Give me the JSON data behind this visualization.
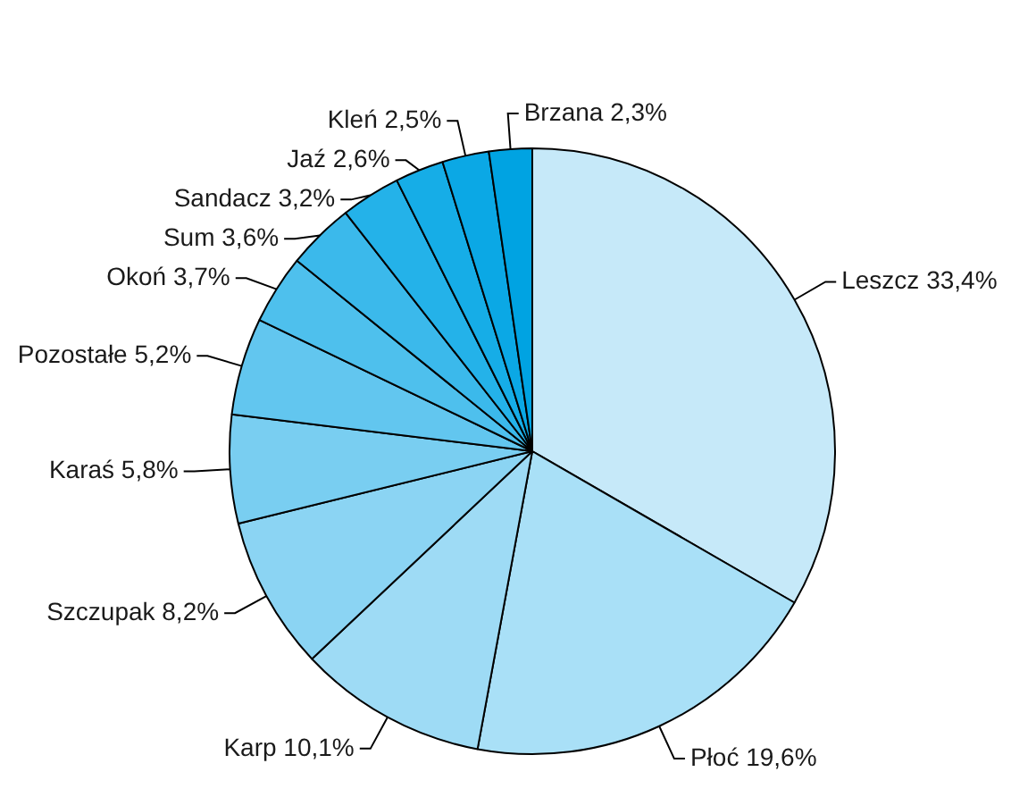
{
  "chart_data": {
    "type": "pie",
    "categories": [
      "Leszcz",
      "Płoć",
      "Karp",
      "Szczupak",
      "Karaś",
      "Pozostałe",
      "Okoń",
      "Sum",
      "Sandacz",
      "Jaź",
      "Kleń",
      "Brzana"
    ],
    "values": [
      33.4,
      19.6,
      10.1,
      8.2,
      5.8,
      5.2,
      3.7,
      3.6,
      3.2,
      2.6,
      2.5,
      2.3
    ],
    "value_labels": [
      "33,4%",
      "19,6%",
      "10,1%",
      "8,2%",
      "5,8%",
      "5,2%",
      "3,7%",
      "3,6%",
      "3,2%",
      "2,6%",
      "2,5%",
      "2,3%"
    ],
    "colors": [
      "#c6e9f9",
      "#a9e0f7",
      "#9edbf5",
      "#8bd4f3",
      "#79cef1",
      "#62c6ef",
      "#4ec0ed",
      "#3bb9eb",
      "#24b2e9",
      "#16ade7",
      "#0ba8e5",
      "#00a3e2"
    ],
    "legend": false
  }
}
